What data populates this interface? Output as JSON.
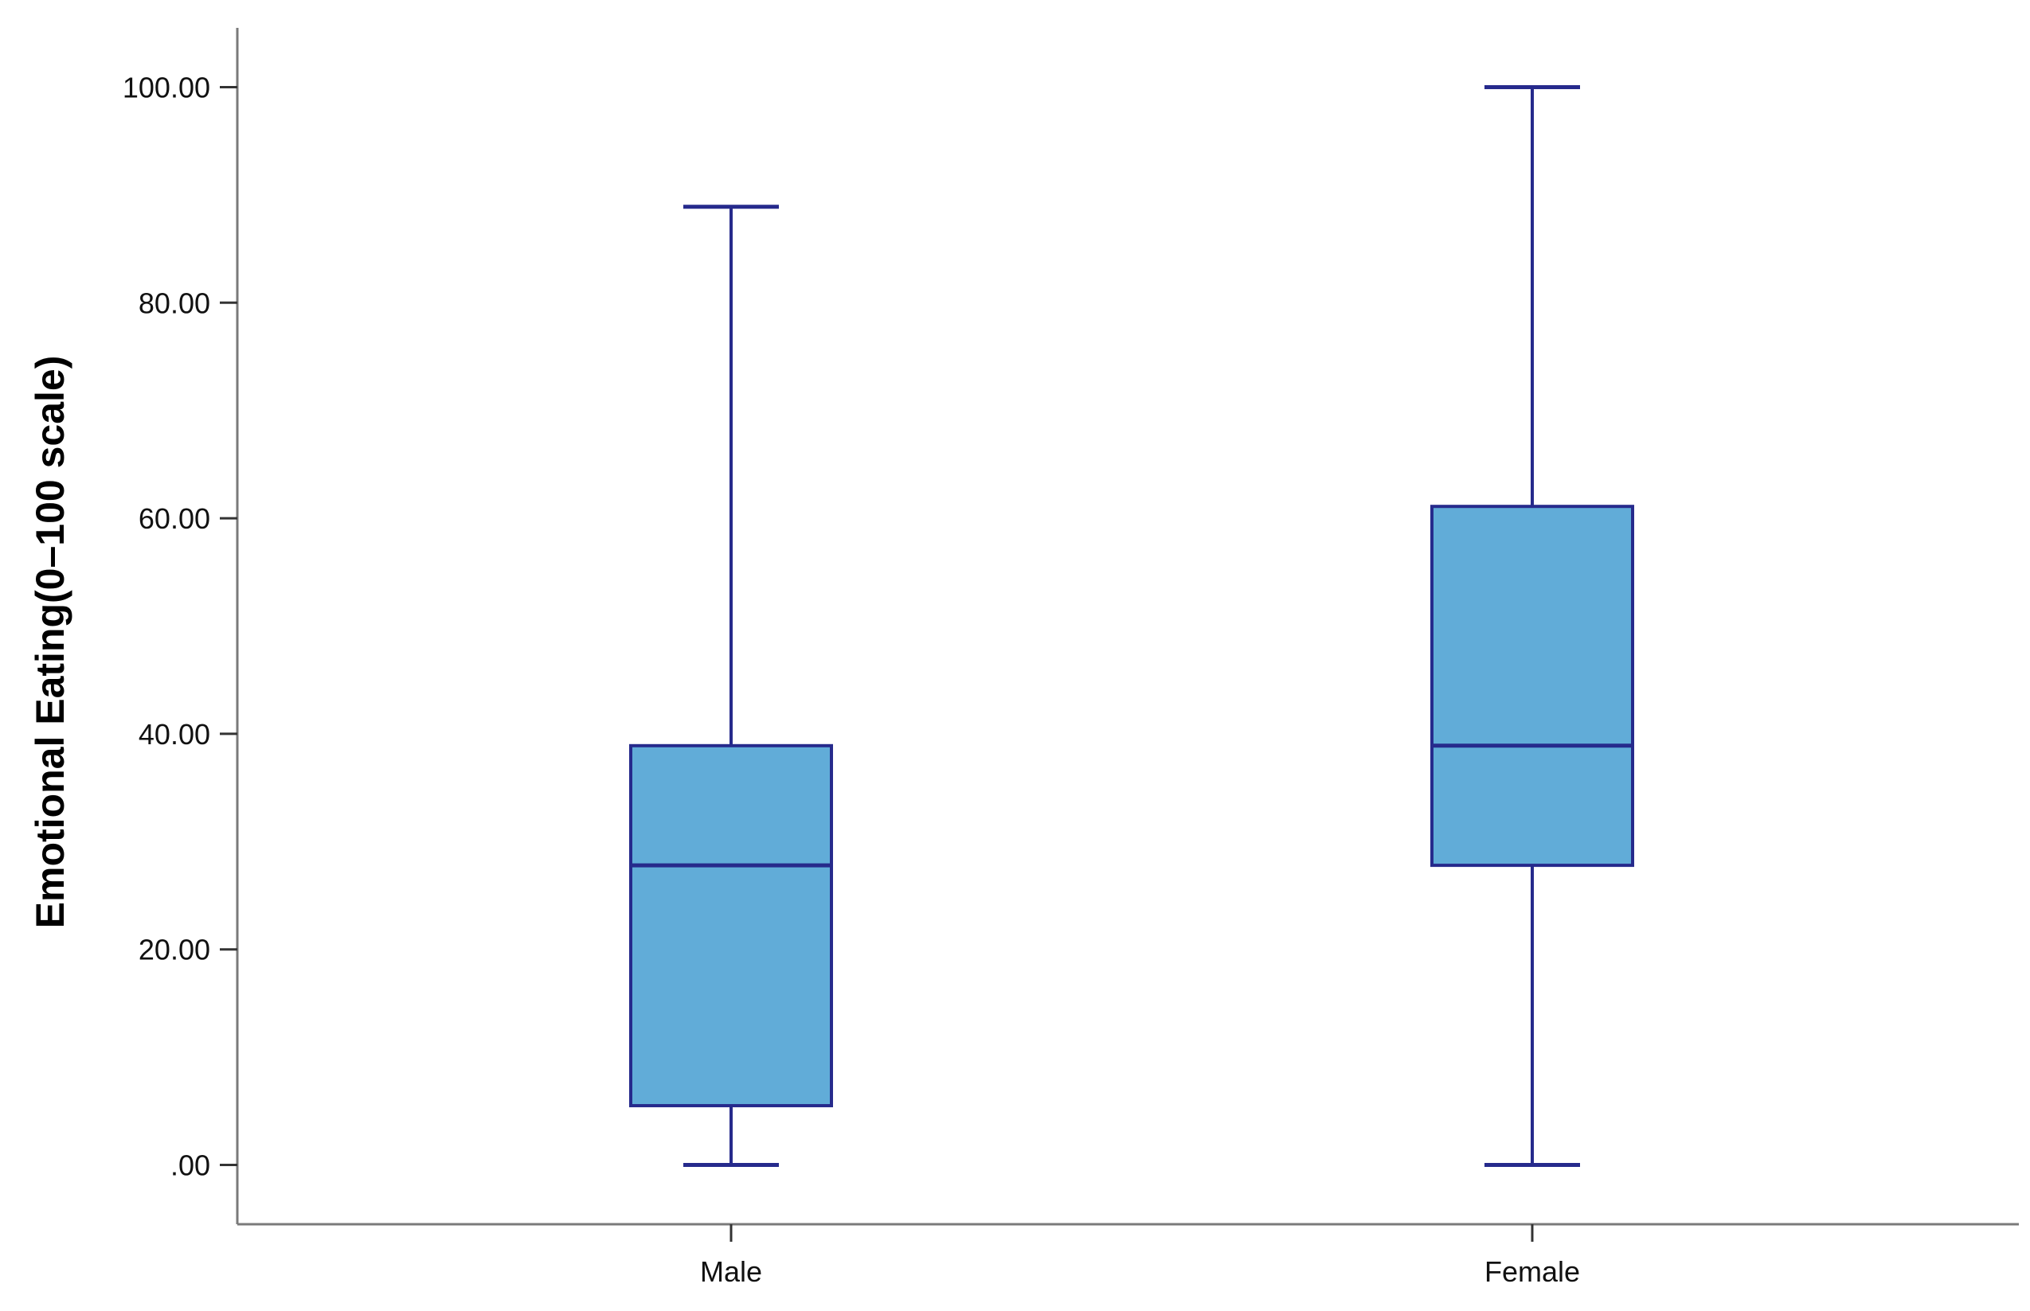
{
  "chart_data": {
    "type": "boxplot",
    "ylabel": "Emotional Eating(0–100 scale)",
    "xlabel": "",
    "ylim": [
      -5.5,
      105.5
    ],
    "yticks": [
      0,
      20,
      40,
      60,
      80,
      100
    ],
    "ytick_labels": [
      ".00",
      "20.00",
      "40.00",
      "60.00",
      "80.00",
      "100.00"
    ],
    "categories": [
      "Male",
      "Female"
    ],
    "boxes": [
      {
        "category": "Male",
        "min": 0,
        "q1": 5.5,
        "median": 27.8,
        "q3": 38.9,
        "max": 88.9
      },
      {
        "category": "Female",
        "min": 0,
        "q1": 27.8,
        "median": 38.9,
        "q3": 61.1,
        "max": 100
      }
    ],
    "grid": false,
    "colors": {
      "box_fill": "#61acd8",
      "box_stroke": "#262a8c",
      "axis": "#7a7a7a"
    }
  }
}
